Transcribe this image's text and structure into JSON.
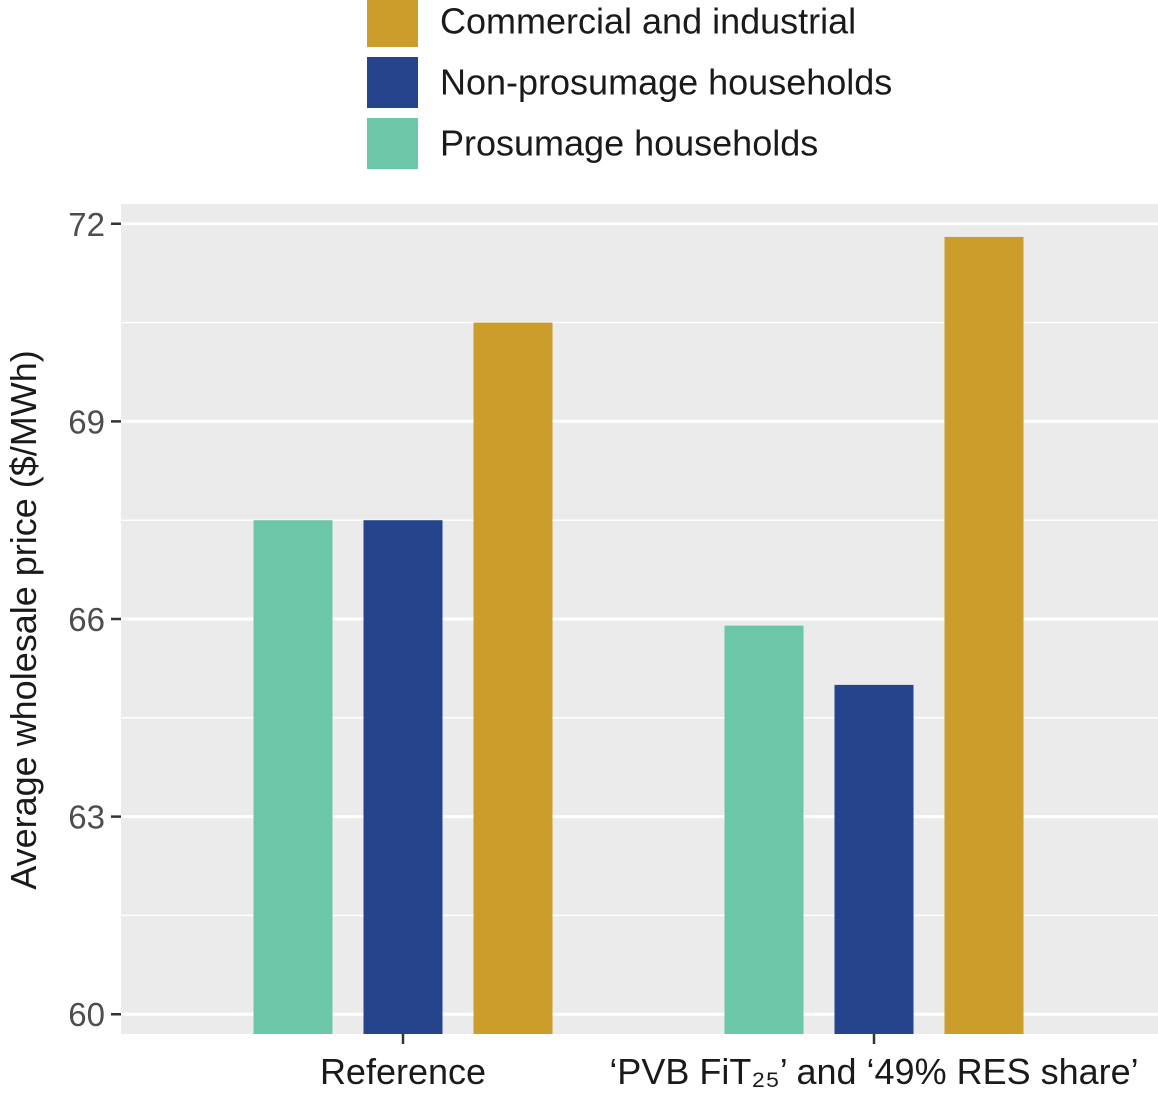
{
  "chart_data": {
    "type": "bar",
    "title": "",
    "xlabel": "",
    "ylabel": "Average wholesale price ($/MWh)",
    "categories": [
      "Reference",
      "‘PVB FiT₂₅’ and ‘49% RES share’"
    ],
    "series": [
      {
        "name": "Prosumage households",
        "color": "#6cc7a8",
        "values": [
          67.5,
          65.9
        ]
      },
      {
        "name": "Non-prosumage households",
        "color": "#26448c",
        "values": [
          67.5,
          65.0
        ]
      },
      {
        "name": "Commercial and industrial",
        "color": "#cb9e2b",
        "values": [
          70.5,
          71.8
        ]
      }
    ],
    "legend": {
      "position": "top",
      "entries": [
        "Commercial and industrial",
        "Non-prosumage households",
        "Prosumage households"
      ],
      "colors": [
        "#cb9e2b",
        "#26448c",
        "#6cc7a8"
      ]
    },
    "yticks": [
      60,
      63,
      66,
      69,
      72
    ],
    "ytick_labels": [
      "60",
      "63",
      "66",
      "69",
      "72"
    ],
    "ylim": [
      59.7,
      72.3
    ],
    "grid": true,
    "panel_background": "#ebebeb",
    "grid_color": "#ffffff"
  }
}
